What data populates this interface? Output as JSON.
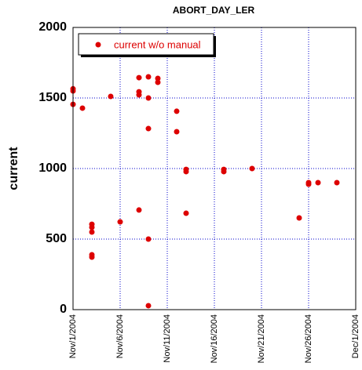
{
  "chart_data": {
    "type": "scatter",
    "title": "ABORT_DAY_LER",
    "ylabel": "current",
    "xlim": [
      0,
      30
    ],
    "xticks": [
      {
        "value": 0,
        "label": "Nov/1/2004"
      },
      {
        "value": 5,
        "label": "Nov/6/2004"
      },
      {
        "value": 10,
        "label": "Nov/11/2004"
      },
      {
        "value": 15,
        "label": "Nov/16/2004"
      },
      {
        "value": 20,
        "label": "Nov/21/2004"
      },
      {
        "value": 25,
        "label": "Nov/26/2004"
      },
      {
        "value": 30,
        "label": "Dec/1/2004"
      }
    ],
    "ylim": [
      0,
      2000
    ],
    "yticks": [
      0,
      500,
      1000,
      1500,
      2000
    ],
    "grid": true,
    "legend": "upper left",
    "series": [
      {
        "name": "current w/o manual",
        "color": "#dd0000",
        "x": [
          0,
          0,
          0,
          1,
          2,
          2,
          2,
          2,
          2,
          4,
          5,
          7,
          7,
          7,
          7,
          8,
          8,
          8,
          8,
          8,
          9,
          9,
          11,
          11,
          12,
          12,
          12,
          16,
          16,
          19,
          24,
          25,
          25,
          26,
          28
        ],
        "values": [
          1565,
          1550,
          1455,
          1428,
          605,
          583,
          550,
          389,
          372,
          1511,
          622,
          1644,
          1544,
          1522,
          706,
          1650,
          1500,
          1283,
          500,
          28,
          1639,
          1611,
          1406,
          1261,
          994,
          978,
          683,
          994,
          978,
          1000,
          650,
          900,
          889,
          900,
          900
        ]
      }
    ]
  }
}
